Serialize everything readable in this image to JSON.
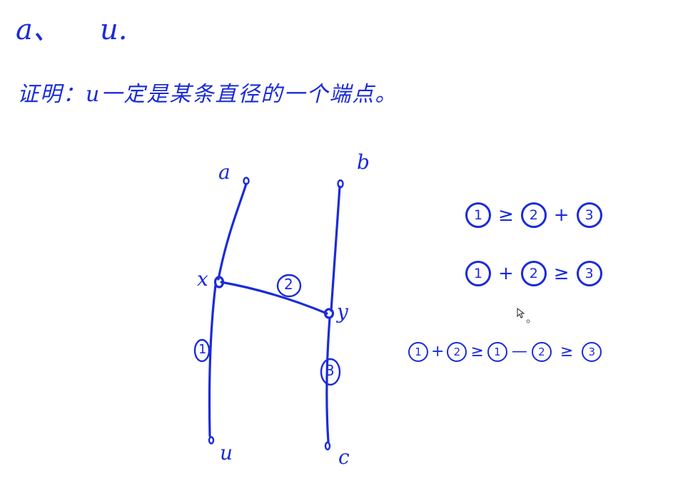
{
  "top": {
    "item_a": "a、",
    "item_u": "u."
  },
  "claim": "证明：u一定是某条直径的一个端点。",
  "diagram": {
    "node_a": "a",
    "node_b": "b",
    "node_x": "x",
    "node_y": "y",
    "node_u": "u",
    "node_c": "c",
    "edge_x_y": "2",
    "edge_x_u": "1",
    "edge_y_c": "3"
  },
  "inequalities": {
    "line1": {
      "left": "1",
      "op": "≥",
      "right_a": "2",
      "plus": "+",
      "right_b": "3"
    },
    "line2": {
      "left_a": "1",
      "plus": "+",
      "left_b": "2",
      "op": "≥",
      "right": "3"
    },
    "line3": {
      "left_a": "1",
      "plus": "+",
      "left_b": "2",
      "op1": "≥",
      "mid_a": "1",
      "minus": "—",
      "mid_b": "2",
      "op2": "≥",
      "right": "3"
    }
  },
  "colors": {
    "ink": "#1a2bd9",
    "background": "#ffffff"
  }
}
